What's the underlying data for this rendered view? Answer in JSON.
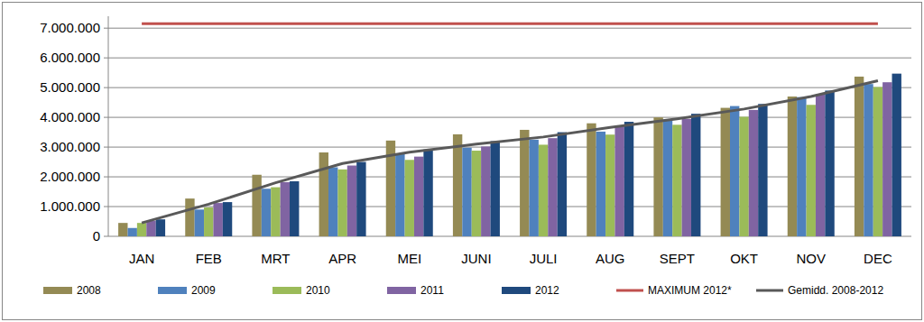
{
  "chart_data": {
    "type": "bar",
    "categories": [
      "JAN",
      "FEB",
      "MRT",
      "APR",
      "MEI",
      "JUNI",
      "JULI",
      "AUG",
      "SEPT",
      "OKT",
      "NOV",
      "DEC"
    ],
    "series": [
      {
        "name": "2008",
        "color": "#948a54",
        "values": [
          450000,
          1270000,
          2070000,
          2820000,
          3220000,
          3430000,
          3580000,
          3800000,
          4000000,
          4320000,
          4700000,
          5370000
        ]
      },
      {
        "name": "2009",
        "color": "#4f81bd",
        "values": [
          280000,
          900000,
          1600000,
          2320000,
          2780000,
          2980000,
          3250000,
          3520000,
          3920000,
          4380000,
          4680000,
          5120000
        ]
      },
      {
        "name": "2010",
        "color": "#9bbb59",
        "values": [
          450000,
          970000,
          1650000,
          2250000,
          2570000,
          2880000,
          3080000,
          3420000,
          3750000,
          4020000,
          4420000,
          5020000
        ]
      },
      {
        "name": "2011",
        "color": "#8064a2",
        "values": [
          520000,
          1120000,
          1820000,
          2380000,
          2680000,
          3020000,
          3300000,
          3700000,
          3950000,
          4250000,
          4780000,
          5180000
        ]
      },
      {
        "name": "2012",
        "color": "#1f497d",
        "values": [
          570000,
          1150000,
          1850000,
          2500000,
          2920000,
          3200000,
          3500000,
          3850000,
          4120000,
          4450000,
          4900000,
          5470000
        ]
      },
      {
        "name": "MAXIMUM 2012*",
        "color": "#c0504d",
        "type": "line",
        "values": [
          7150000,
          7150000,
          7150000,
          7150000,
          7150000,
          7150000,
          7150000,
          7150000,
          7150000,
          7150000,
          7150000,
          7150000
        ]
      },
      {
        "name": "Gemidd. 2008-2012",
        "color": "#595959",
        "type": "line",
        "values": [
          450000,
          1080000,
          1800000,
          2450000,
          2830000,
          3100000,
          3340000,
          3660000,
          3950000,
          4280000,
          4700000,
          5230000
        ]
      }
    ],
    "ylim": [
      0,
      7400000
    ],
    "yticks": [
      0,
      {
        "value": 1000000,
        "label": "1.000.000"
      },
      {
        "value": 2000000,
        "label": "2.000.000"
      },
      {
        "value": 3000000,
        "label": "3.000.000"
      },
      {
        "value": 4000000,
        "label": "4.000.000"
      },
      {
        "value": 5000000,
        "label": "5.000.000"
      },
      {
        "value": 6000000,
        "label": "6.000.000"
      },
      {
        "value": 7000000,
        "label": "7.000.000"
      }
    ],
    "grid": true,
    "legend": "bottom"
  }
}
